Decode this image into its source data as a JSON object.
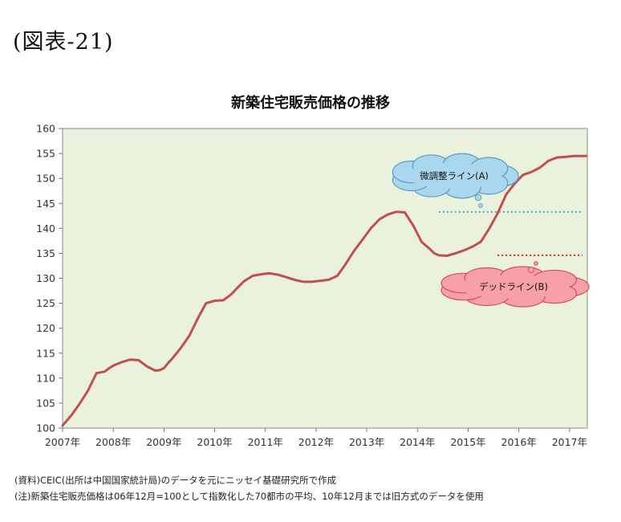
{
  "figure_label": "(図表-21)",
  "notes": [
    "(資料)CEIC(出所は中国国家統計局)のデータを元にニッセイ基礎研究所で作成",
    "(注)新築住宅販売価格は06年12月=100として指数化した70都市の平均、10年12月までは旧方式のデータを使用"
  ],
  "colors": {
    "plot_bg": "#eaf1dd",
    "series": "#c0504d",
    "line_a": "#4bacc6",
    "line_b": "#e02020",
    "cloud_a": "#a9d8ee",
    "cloud_b": "#f8a0a8"
  },
  "chart_data": {
    "type": "line",
    "title": "新築住宅販売価格の推移",
    "xlabel": "",
    "ylabel": "",
    "xlim": [
      2007.0,
      2017.35
    ],
    "ylim": [
      100,
      160
    ],
    "yticks": [
      100,
      105,
      110,
      115,
      120,
      125,
      130,
      135,
      140,
      145,
      150,
      155,
      160
    ],
    "xticks": [
      {
        "value": 2007.0,
        "label": "2007年"
      },
      {
        "value": 2008.0,
        "label": "2008年"
      },
      {
        "value": 2009.0,
        "label": "2009年"
      },
      {
        "value": 2010.0,
        "label": "2010年"
      },
      {
        "value": 2011.0,
        "label": "2011年"
      },
      {
        "value": 2012.0,
        "label": "2012年"
      },
      {
        "value": 2013.0,
        "label": "2013年"
      },
      {
        "value": 2014.0,
        "label": "2014年"
      },
      {
        "value": 2015.0,
        "label": "2015年"
      },
      {
        "value": 2016.0,
        "label": "2016年"
      },
      {
        "value": 2017.0,
        "label": "2017年"
      }
    ],
    "grid": false,
    "legend": "none",
    "series": [
      {
        "x": [
          2007.0,
          2007.17,
          2007.33,
          2007.5,
          2007.67,
          2007.83,
          2007.92,
          2008.0,
          2008.17,
          2008.33,
          2008.5,
          2008.67,
          2008.83,
          2008.92,
          2009.0,
          2009.08,
          2009.17,
          2009.33,
          2009.5,
          2009.67,
          2009.83,
          2010.0,
          2010.17,
          2010.33,
          2010.42,
          2010.58,
          2010.75,
          2010.92,
          2011.08,
          2011.25,
          2011.42,
          2011.58,
          2011.75,
          2011.92,
          2012.08,
          2012.25,
          2012.42,
          2012.58,
          2012.75,
          2012.92,
          2013.08,
          2013.25,
          2013.42,
          2013.58,
          2013.75,
          2013.92,
          2014.08,
          2014.25,
          2014.33,
          2014.42,
          2014.58,
          2014.75,
          2014.92,
          2015.08,
          2015.25,
          2015.42,
          2015.58,
          2015.75,
          2015.92,
          2016.08,
          2016.25,
          2016.42,
          2016.58,
          2016.75,
          2016.92,
          2017.08,
          2017.25,
          2017.33
        ],
        "y": [
          100.5,
          102.5,
          104.8,
          107.5,
          111.0,
          111.3,
          112.0,
          112.5,
          113.2,
          113.7,
          113.6,
          112.3,
          111.5,
          111.6,
          112.0,
          113.0,
          114.0,
          116.0,
          118.5,
          122.0,
          125.0,
          125.5,
          125.6,
          126.8,
          127.8,
          129.4,
          130.5,
          130.8,
          131.0,
          130.7,
          130.2,
          129.7,
          129.3,
          129.3,
          129.5,
          129.7,
          130.5,
          132.8,
          135.5,
          137.8,
          140.0,
          141.8,
          142.8,
          143.3,
          143.2,
          140.5,
          137.3,
          135.8,
          135.0,
          134.6,
          134.5,
          135.0,
          135.6,
          136.3,
          137.3,
          140.0,
          143.0,
          146.8,
          149.0,
          150.7,
          151.3,
          152.2,
          153.5,
          154.2,
          154.3,
          154.5,
          154.5,
          154.5
        ],
        "color": "#c0504d"
      }
    ],
    "annotations": [
      {
        "label": "微調整ライン(A)",
        "y": 143.3,
        "x_start": 2014.42,
        "x_end": 2017.35
      },
      {
        "label": "デッドライン(B)",
        "y": 134.6,
        "x_start": 2015.58,
        "x_end": 2017.35
      }
    ]
  }
}
